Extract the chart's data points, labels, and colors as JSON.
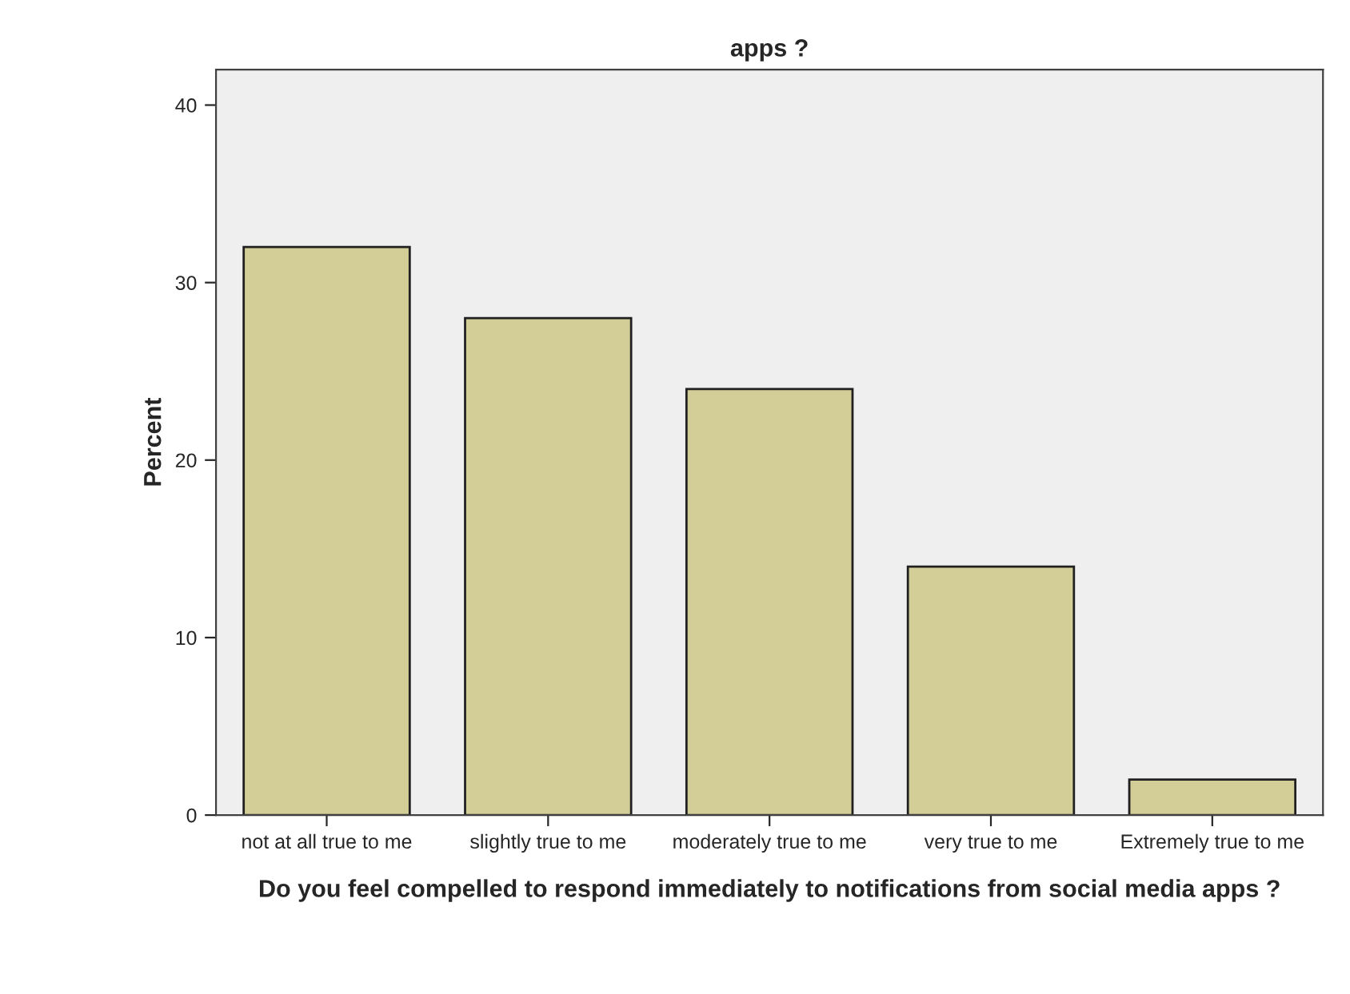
{
  "chart_data": {
    "type": "bar",
    "title": "apps ?",
    "xlabel": "Do you feel compelled to respond immediately to notifications from social media apps ?",
    "ylabel": "Percent",
    "categories": [
      "not at all true to me",
      "slightly true to me",
      "moderately true to me",
      "very true to me",
      "Extremely true to me"
    ],
    "values": [
      32,
      28,
      24,
      14,
      2
    ],
    "color": "#d3ce97",
    "ylim": [
      0,
      42
    ],
    "yticks": [
      0,
      10,
      20,
      30,
      40
    ],
    "grid": false
  }
}
